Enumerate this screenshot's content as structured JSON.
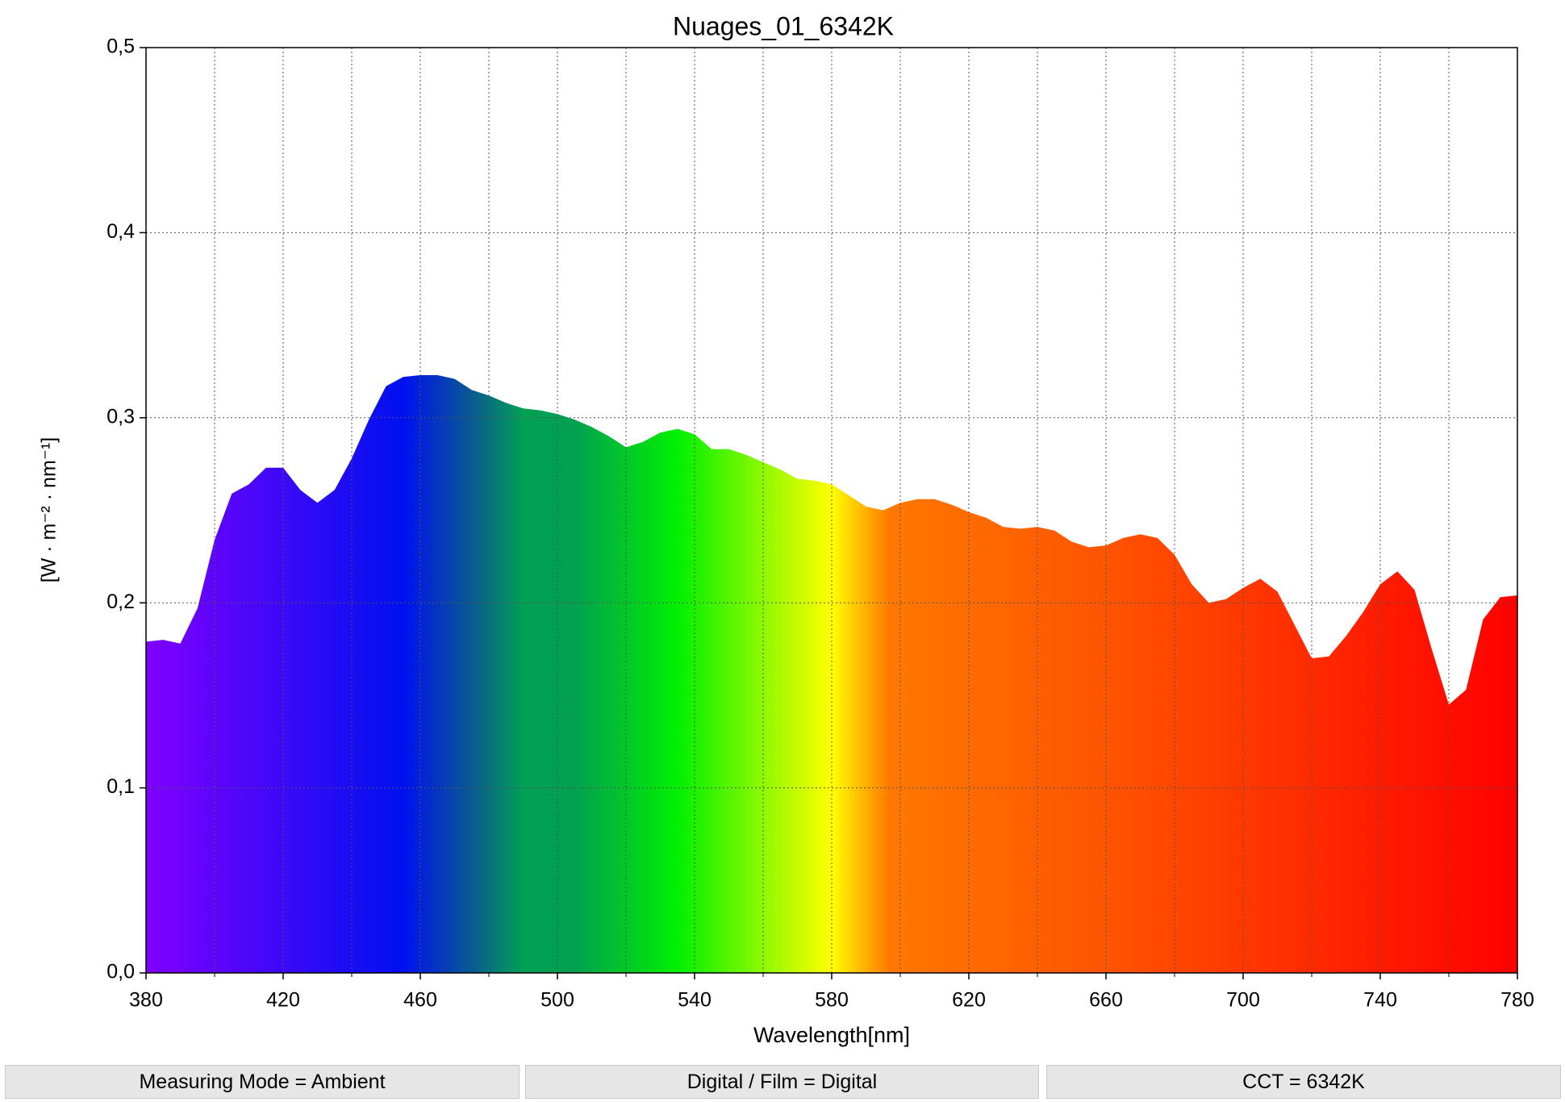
{
  "chart_data": {
    "type": "area",
    "title": "Nuages_01_6342K",
    "x_label": "Wavelength[nm]",
    "y_label": "[W · m⁻² · nm⁻¹]",
    "x": [
      380,
      385,
      390,
      395,
      400,
      405,
      410,
      415,
      420,
      425,
      430,
      435,
      440,
      445,
      450,
      455,
      460,
      465,
      470,
      475,
      480,
      485,
      490,
      495,
      500,
      505,
      510,
      515,
      520,
      525,
      530,
      535,
      540,
      545,
      550,
      555,
      560,
      565,
      570,
      575,
      580,
      585,
      590,
      595,
      600,
      605,
      610,
      615,
      620,
      625,
      630,
      635,
      640,
      645,
      650,
      655,
      660,
      665,
      670,
      675,
      680,
      685,
      690,
      695,
      700,
      705,
      710,
      715,
      720,
      725,
      730,
      735,
      740,
      745,
      750,
      755,
      760,
      765,
      770,
      775,
      780
    ],
    "values": [
      0.179,
      0.18,
      0.178,
      0.197,
      0.234,
      0.259,
      0.264,
      0.273,
      0.273,
      0.261,
      0.254,
      0.261,
      0.278,
      0.299,
      0.317,
      0.322,
      0.323,
      0.323,
      0.321,
      0.315,
      0.312,
      0.308,
      0.305,
      0.304,
      0.302,
      0.299,
      0.295,
      0.29,
      0.284,
      0.287,
      0.292,
      0.294,
      0.291,
      0.283,
      0.283,
      0.28,
      0.276,
      0.272,
      0.267,
      0.266,
      0.264,
      0.258,
      0.252,
      0.25,
      0.254,
      0.256,
      0.256,
      0.253,
      0.249,
      0.246,
      0.241,
      0.24,
      0.241,
      0.239,
      0.233,
      0.23,
      0.231,
      0.235,
      0.237,
      0.235,
      0.226,
      0.21,
      0.2,
      0.202,
      0.208,
      0.213,
      0.206,
      0.188,
      0.17,
      0.171,
      0.182,
      0.195,
      0.21,
      0.217,
      0.207,
      0.175,
      0.145,
      0.153,
      0.191,
      0.203,
      0.204
    ],
    "gradient": [
      {
        "offset": 380,
        "color": "#8000ff"
      },
      {
        "offset": 455,
        "color": "#0010f0"
      },
      {
        "offset": 475,
        "color": "#0a5a90"
      },
      {
        "offset": 490,
        "color": "#00a055"
      },
      {
        "offset": 505,
        "color": "#00a050"
      },
      {
        "offset": 535,
        "color": "#00f000"
      },
      {
        "offset": 580,
        "color": "#ffff00"
      },
      {
        "offset": 597,
        "color": "#ff7800"
      },
      {
        "offset": 660,
        "color": "#ff5400"
      },
      {
        "offset": 780,
        "color": "#ff0000"
      }
    ],
    "xlim": [
      380,
      780
    ],
    "xticks": [
      380,
      420,
      460,
      500,
      540,
      580,
      620,
      660,
      700,
      740,
      780
    ],
    "xminor_ticks": [
      400,
      440,
      480,
      520,
      560,
      600,
      640,
      680,
      720,
      760
    ],
    "ylim": [
      0,
      0.5
    ],
    "yticks": [
      {
        "value": 0,
        "label": "0,0"
      },
      {
        "value": 0.1,
        "label": "0,1"
      },
      {
        "value": 0.2,
        "label": "0,2"
      },
      {
        "value": 0.3,
        "label": "0,3"
      },
      {
        "value": 0.4,
        "label": "0,4"
      },
      {
        "value": 0.5,
        "label": "0,5"
      }
    ],
    "grid": true
  },
  "footer": [
    "Measuring Mode = Ambient",
    "Digital / Film = Digital",
    "CCT = 6342K"
  ]
}
